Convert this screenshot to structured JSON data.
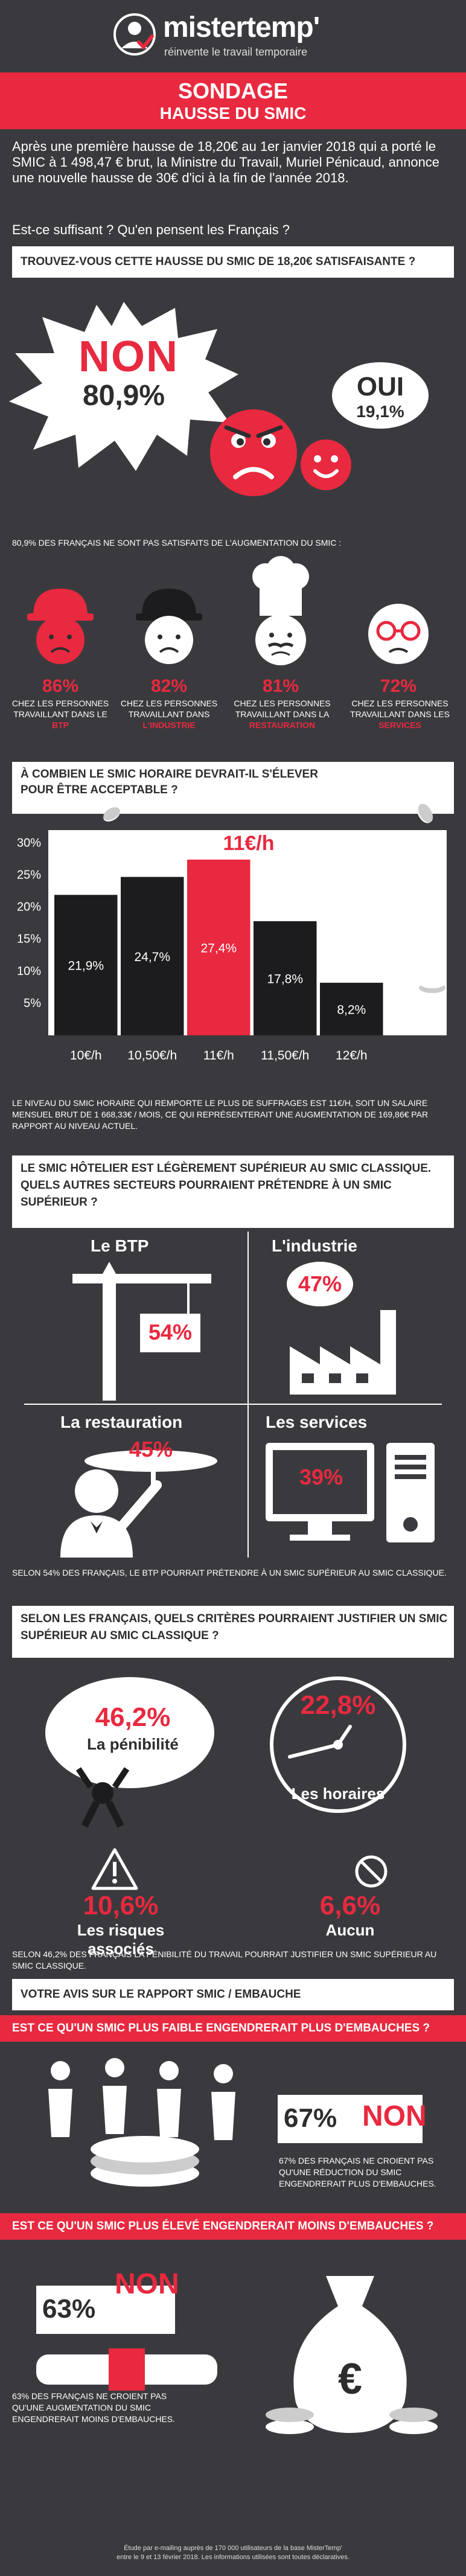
{
  "header": {
    "brand": "mistertemp'",
    "tagline": "réinvente le travail temporaire"
  },
  "title": {
    "line1": "SONDAGE",
    "line2": "HAUSSE DU SMIC"
  },
  "intro": {
    "paragraph": "Après une première hausse de 18,20€ au 1er janvier 2018 qui a porté le SMIC à 1 498,47 € brut, la Ministre du Travail, Muriel Pénicaud, annonce une nouvelle hausse de 30€ d'ici à la fin de l'année 2018.",
    "question": "Est-ce suffisant ? Qu'en pensent les Français ?"
  },
  "q1": {
    "heading": "TROUVEZ-VOUS CETTE HAUSSE DU SMIC DE 18,20€ SATISFAISANTE ?",
    "non_label": "NON",
    "non_value": "80,9%",
    "oui_label": "OUI",
    "oui_value": "19,1%",
    "note": "80,9% DES FRANÇAIS NE SONT PAS SATISFAITS DE L'AUGMENTATION DU SMIC :",
    "sectors": [
      {
        "pct": "86%",
        "text": "CHEZ LES PERSONNES TRAVAILLANT DANS LE",
        "sector": "BTP"
      },
      {
        "pct": "82%",
        "text": "CHEZ LES PERSONNES TRAVAILLANT DANS",
        "sector": "L'INDUSTRIE"
      },
      {
        "pct": "81%",
        "text": "CHEZ LES PERSONNES TRAVAILLANT DANS LA",
        "sector": "RESTAURATION"
      },
      {
        "pct": "72%",
        "text": "CHEZ LES PERSONNES TRAVAILLANT DANS LES",
        "sector": "SERVICES"
      }
    ]
  },
  "q2": {
    "heading_line1": "À COMBIEN LE SMIC HORAIRE DEVRAIT-IL S'ÉLEVER",
    "heading_line2": "POUR ÊTRE ACCEPTABLE ?",
    "highlight": "11€/h",
    "note": "LE NIVEAU DU SMIC HORAIRE QUI REMPORTE LE PLUS DE SUFFRAGES EST 11€/H, SOIT UN SALAIRE MENSUEL BRUT DE 1 668,33€ / MOIS, CE QUI REPRÉSENTERAIT UNE AUGMENTATION DE 169,86€ PAR RAPPORT AU NIVEAU ACTUEL."
  },
  "chart_data": {
    "type": "bar",
    "categories": [
      "10€/h",
      "10,50€/h",
      "11€/h",
      "11,50€/h",
      "12€/h"
    ],
    "values": [
      21.9,
      24.7,
      27.4,
      17.8,
      8.2
    ],
    "value_labels": [
      "21,9%",
      "24,7%",
      "27,4%",
      "17,8%",
      "8,2%"
    ],
    "yticks": [
      "5%",
      "10%",
      "15%",
      "20%",
      "25%",
      "30%"
    ],
    "ytick_values": [
      5,
      10,
      15,
      20,
      25,
      30
    ],
    "ylim": [
      0,
      32
    ],
    "highlight_index": 2,
    "colors": {
      "bar": "#1c1c1e",
      "highlight": "#e8293f",
      "axis_bg": "#ffffff"
    }
  },
  "q3": {
    "heading": "LE SMIC HÔTELIER EST LÉGÈREMENT SUPÉRIEUR AU SMIC CLASSIQUE. QUELS AUTRES SECTEURS POURRAIENT PRÉTENDRE À UN SMIC SUPÉRIEUR ?",
    "items": [
      {
        "label": "Le BTP",
        "pct": "54%"
      },
      {
        "label": "L'industrie",
        "pct": "47%"
      },
      {
        "label": "La restauration",
        "pct": "45%"
      },
      {
        "label": "Les services",
        "pct": "39%"
      }
    ],
    "note": "SELON 54% DES FRANÇAIS, LE BTP POURRAIT PRÉTENDRE À UN SMIC SUPÉRIEUR AU SMIC CLASSIQUE."
  },
  "q4": {
    "heading": "SELON LES FRANÇAIS, QUELS CRITÈRES POURRAIENT JUSTIFIER UN SMIC SUPÉRIEUR AU SMIC CLASSIQUE ?",
    "items": [
      {
        "pct": "46,2%",
        "label": "La pénibilité"
      },
      {
        "pct": "22,8%",
        "label": "Les horaires"
      },
      {
        "pct": "10,6%",
        "label": "Les risques associés"
      },
      {
        "pct": "6,6%",
        "label": "Aucun"
      }
    ],
    "note": "SELON 46,2% DES FRANÇAIS LA PÉNIBILITÉ DU TRAVAIL POURRAIT JUSTIFIER UN SMIC SUPÉRIEUR AU SMIC CLASSIQUE."
  },
  "q5": {
    "heading": "VOTRE AVIS SUR LE RAPPORT SMIC / EMBAUCHE",
    "sub1": "EST CE QU'UN SMIC PLUS FAIBLE ENGENDRERAIT PLUS D'EMBAUCHES ?",
    "sub1_pct": "67%",
    "sub1_word": "NON",
    "sub1_note": "67% DES FRANÇAIS NE CROIENT PAS QU'UNE RÉDUCTION DU SMIC ENGENDRERAIT PLUS D'EMBAUCHES.",
    "sub2": "EST CE QU'UN SMIC PLUS ÉLEVÉ ENGENDRERAIT MOINS D'EMBAUCHES ?",
    "sub2_pct": "63%",
    "sub2_word": "NON",
    "sub2_note": "63% DES FRANÇAIS NE CROIENT PAS QU'UNE AUGMENTATION DU SMIC ENGENDRERAIT MOINS D'EMBAUCHES.",
    "euro_symbol": "€"
  },
  "footer": {
    "line1": "Étude par e-mailing auprès de 170 000 utilisateurs de la base MisterTemp'",
    "line2": "entre le 9 et 13 février 2018. Les informations utilisées sont toutes déclaratives."
  }
}
